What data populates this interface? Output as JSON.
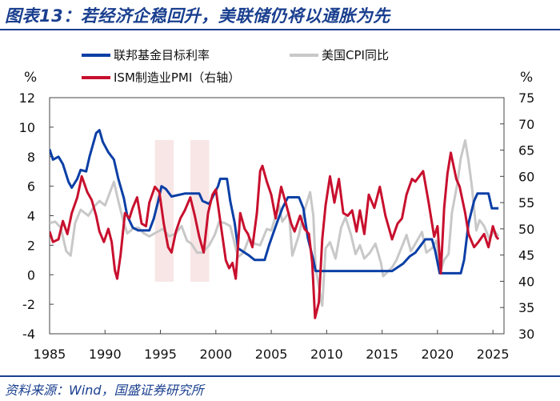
{
  "header": {
    "title": "图表13：若经济企稳回升，美联储仍将以通胀为先"
  },
  "footer": {
    "source": "资料来源：Wind，国盛证券研究所"
  },
  "colors": {
    "title": "#1a3f8f",
    "fed": "#0b3fa6",
    "cpi": "#c8c8c8",
    "pmi": "#c8102e",
    "shade": "#f6dede"
  },
  "chart_data": {
    "type": "line",
    "title": "",
    "xlabel": "",
    "left_unit": "%",
    "right_unit": "%",
    "x_range": [
      1985,
      2026
    ],
    "x_ticks": [
      1985,
      1990,
      1995,
      2000,
      2005,
      2010,
      2015,
      2020,
      2025
    ],
    "y_left": {
      "range": [
        -4,
        12
      ],
      "ticks": [
        -4,
        -2,
        0,
        2,
        4,
        6,
        8,
        10,
        12
      ]
    },
    "y_right": {
      "range": [
        30,
        75
      ],
      "ticks": [
        30,
        35,
        40,
        45,
        50,
        55,
        60,
        65,
        70,
        75
      ]
    },
    "shaded_periods": [
      [
        1994.5,
        1996.2
      ],
      [
        1997.7,
        1999.4
      ]
    ],
    "series": [
      {
        "name": "联邦基金目标利率",
        "axis": "left",
        "points": [
          [
            1985,
            8.5
          ],
          [
            1985.3,
            7.8
          ],
          [
            1985.8,
            8.0
          ],
          [
            1986.2,
            7.5
          ],
          [
            1986.7,
            6.3
          ],
          [
            1987,
            5.9
          ],
          [
            1987.5,
            6.5
          ],
          [
            1987.8,
            7.1
          ],
          [
            1988.3,
            7.0
          ],
          [
            1988.6,
            8.0
          ],
          [
            1989.2,
            9.6
          ],
          [
            1989.5,
            9.8
          ],
          [
            1989.8,
            9.0
          ],
          [
            1990.3,
            8.3
          ],
          [
            1990.8,
            7.8
          ],
          [
            1991.2,
            6.5
          ],
          [
            1991.7,
            5.2
          ],
          [
            1992,
            4.0
          ],
          [
            1992.5,
            3.2
          ],
          [
            1993,
            3.0
          ],
          [
            1994,
            3.0
          ],
          [
            1994.4,
            3.8
          ],
          [
            1994.8,
            5.0
          ],
          [
            1995.1,
            6.0
          ],
          [
            1995.5,
            5.8
          ],
          [
            1996,
            5.3
          ],
          [
            1997.2,
            5.5
          ],
          [
            1998.5,
            5.5
          ],
          [
            1998.8,
            5.0
          ],
          [
            1999.4,
            4.8
          ],
          [
            1999.8,
            5.4
          ],
          [
            2000.2,
            6.0
          ],
          [
            2000.4,
            6.5
          ],
          [
            2001,
            6.5
          ],
          [
            2001.3,
            5.0
          ],
          [
            2001.7,
            3.5
          ],
          [
            2002,
            1.8
          ],
          [
            2003,
            1.3
          ],
          [
            2003.5,
            1.0
          ],
          [
            2004.4,
            1.0
          ],
          [
            2004.8,
            2.0
          ],
          [
            2005.5,
            3.5
          ],
          [
            2006,
            4.5
          ],
          [
            2006.5,
            5.25
          ],
          [
            2007.5,
            5.25
          ],
          [
            2007.9,
            4.5
          ],
          [
            2008.3,
            2.5
          ],
          [
            2008.8,
            1.0
          ],
          [
            2009,
            0.25
          ],
          [
            2015.9,
            0.25
          ],
          [
            2016.9,
            0.75
          ],
          [
            2017.5,
            1.25
          ],
          [
            2018,
            1.5
          ],
          [
            2018.9,
            2.4
          ],
          [
            2019.5,
            2.4
          ],
          [
            2019.8,
            1.6
          ],
          [
            2020.2,
            0.1
          ],
          [
            2022.1,
            0.1
          ],
          [
            2022.4,
            1.0
          ],
          [
            2022.8,
            3.5
          ],
          [
            2023.3,
            5.0
          ],
          [
            2023.6,
            5.5
          ],
          [
            2024.6,
            5.5
          ],
          [
            2024.9,
            4.5
          ],
          [
            2025.5,
            4.5
          ]
        ]
      },
      {
        "name": "美国CPI同比",
        "axis": "left",
        "points": [
          [
            1985,
            3.5
          ],
          [
            1985.5,
            3.6
          ],
          [
            1986,
            3.2
          ],
          [
            1986.5,
            1.6
          ],
          [
            1986.9,
            1.3
          ],
          [
            1987.3,
            3.5
          ],
          [
            1987.8,
            4.4
          ],
          [
            1988.5,
            4.0
          ],
          [
            1989,
            4.6
          ],
          [
            1989.5,
            5.0
          ],
          [
            1990,
            4.7
          ],
          [
            1990.8,
            6.3
          ],
          [
            1991.2,
            5.0
          ],
          [
            1991.6,
            3.8
          ],
          [
            1992,
            2.8
          ],
          [
            1992.5,
            3.1
          ],
          [
            1993,
            3.2
          ],
          [
            1993.5,
            2.8
          ],
          [
            1994,
            2.6
          ],
          [
            1994.7,
            2.9
          ],
          [
            1995.2,
            3.1
          ],
          [
            1995.8,
            2.6
          ],
          [
            1996.4,
            2.8
          ],
          [
            1996.9,
            3.3
          ],
          [
            1997.4,
            2.3
          ],
          [
            1997.8,
            2.1
          ],
          [
            1998.3,
            1.5
          ],
          [
            1998.8,
            1.5
          ],
          [
            1999.4,
            2.0
          ],
          [
            1999.9,
            2.7
          ],
          [
            2000.3,
            3.6
          ],
          [
            2000.8,
            3.5
          ],
          [
            2001.3,
            3.3
          ],
          [
            2001.8,
            1.8
          ],
          [
            2002,
            1.2
          ],
          [
            2002.5,
            1.5
          ],
          [
            2003,
            2.5
          ],
          [
            2003.5,
            2.1
          ],
          [
            2004,
            2.0
          ],
          [
            2004.6,
            3.1
          ],
          [
            2005,
            3.0
          ],
          [
            2005.7,
            4.7
          ],
          [
            2006,
            3.6
          ],
          [
            2006.6,
            4.2
          ],
          [
            2006.9,
            1.3
          ],
          [
            2007.5,
            2.7
          ],
          [
            2007.9,
            4.1
          ],
          [
            2008.5,
            5.6
          ],
          [
            2008.8,
            4.0
          ],
          [
            2009,
            0.5
          ],
          [
            2009.4,
            -1.3
          ],
          [
            2009.6,
            -2.1
          ],
          [
            2009.9,
            1.8
          ],
          [
            2010.3,
            2.2
          ],
          [
            2010.8,
            1.1
          ],
          [
            2011.3,
            3.2
          ],
          [
            2011.7,
            3.9
          ],
          [
            2012.2,
            2.7
          ],
          [
            2012.6,
            1.4
          ],
          [
            2013,
            2.0
          ],
          [
            2013.4,
            1.1
          ],
          [
            2013.9,
            1.5
          ],
          [
            2014.4,
            2.1
          ],
          [
            2014.9,
            0.8
          ],
          [
            2015.1,
            -0.1
          ],
          [
            2015.5,
            0.2
          ],
          [
            2015.9,
            0.5
          ],
          [
            2016.3,
            1.0
          ],
          [
            2016.9,
            2.1
          ],
          [
            2017.2,
            2.7
          ],
          [
            2017.6,
            1.6
          ],
          [
            2018,
            2.1
          ],
          [
            2018.6,
            2.9
          ],
          [
            2019,
            1.5
          ],
          [
            2019.5,
            1.8
          ],
          [
            2019.9,
            2.3
          ],
          [
            2020.3,
            0.3
          ],
          [
            2020.6,
            1.0
          ],
          [
            2021,
            1.4
          ],
          [
            2021.3,
            4.2
          ],
          [
            2021.8,
            6.2
          ],
          [
            2022.1,
            7.9
          ],
          [
            2022.5,
            9.1
          ],
          [
            2022.8,
            7.7
          ],
          [
            2023.1,
            6.0
          ],
          [
            2023.5,
            3.0
          ],
          [
            2023.8,
            3.7
          ],
          [
            2024.2,
            3.3
          ],
          [
            2024.7,
            2.4
          ],
          [
            2025.1,
            3.0
          ],
          [
            2025.5,
            2.6
          ]
        ]
      },
      {
        "name": "ISM制造业PMI（右轴）",
        "axis": "right",
        "points": [
          [
            1985,
            49.5
          ],
          [
            1985.3,
            47.5
          ],
          [
            1985.8,
            48.0
          ],
          [
            1986.2,
            51.5
          ],
          [
            1986.6,
            49.0
          ],
          [
            1987,
            53.0
          ],
          [
            1987.5,
            56.0
          ],
          [
            1987.9,
            60.0
          ],
          [
            1988.4,
            57.0
          ],
          [
            1988.8,
            55.5
          ],
          [
            1989.2,
            52.5
          ],
          [
            1989.5,
            49.5
          ],
          [
            1989.9,
            47.5
          ],
          [
            1990.3,
            50.0
          ],
          [
            1990.6,
            47.5
          ],
          [
            1990.9,
            42.0
          ],
          [
            1991.1,
            40.5
          ],
          [
            1991.4,
            45.0
          ],
          [
            1991.8,
            53.0
          ],
          [
            1992.2,
            52.0
          ],
          [
            1992.5,
            54.0
          ],
          [
            1992.9,
            56.0
          ],
          [
            1993.3,
            51.0
          ],
          [
            1993.7,
            50.5
          ],
          [
            1994,
            55.0
          ],
          [
            1994.5,
            58.0
          ],
          [
            1994.9,
            57.0
          ],
          [
            1995.3,
            51.0
          ],
          [
            1995.7,
            46.5
          ],
          [
            1996,
            45.5
          ],
          [
            1996.4,
            49.5
          ],
          [
            1996.8,
            52.0
          ],
          [
            1997.2,
            53.5
          ],
          [
            1997.7,
            56.0
          ],
          [
            1998.1,
            52.5
          ],
          [
            1998.5,
            48.5
          ],
          [
            1998.9,
            45.5
          ],
          [
            1999.3,
            53.0
          ],
          [
            1999.7,
            56.5
          ],
          [
            2000,
            57.5
          ],
          [
            2000.5,
            50.0
          ],
          [
            2000.9,
            44.0
          ],
          [
            2001.2,
            42.5
          ],
          [
            2001.5,
            43.5
          ],
          [
            2001.8,
            40.5
          ],
          [
            2002.2,
            53.0
          ],
          [
            2002.6,
            50.0
          ],
          [
            2002.9,
            49.0
          ],
          [
            2003.3,
            46.5
          ],
          [
            2003.7,
            53.0
          ],
          [
            2004,
            61.0
          ],
          [
            2004.2,
            62.0
          ],
          [
            2004.6,
            59.0
          ],
          [
            2005,
            56.5
          ],
          [
            2005.4,
            52.0
          ],
          [
            2005.9,
            58.0
          ],
          [
            2006.3,
            55.0
          ],
          [
            2006.8,
            51.0
          ],
          [
            2007.1,
            49.5
          ],
          [
            2007.6,
            52.5
          ],
          [
            2008,
            50.0
          ],
          [
            2008.4,
            49.0
          ],
          [
            2008.7,
            43.5
          ],
          [
            2008.95,
            33.0
          ],
          [
            2009.3,
            36.0
          ],
          [
            2009.6,
            48.0
          ],
          [
            2009.9,
            54.5
          ],
          [
            2010.3,
            60.0
          ],
          [
            2010.7,
            55.0
          ],
          [
            2011.1,
            59.5
          ],
          [
            2011.5,
            53.0
          ],
          [
            2011.9,
            52.5
          ],
          [
            2012.3,
            53.5
          ],
          [
            2012.7,
            49.5
          ],
          [
            2013,
            53.5
          ],
          [
            2013.4,
            49.0
          ],
          [
            2013.8,
            56.5
          ],
          [
            2014.3,
            54.0
          ],
          [
            2014.8,
            58.0
          ],
          [
            2015.3,
            52.5
          ],
          [
            2015.9,
            48.0
          ],
          [
            2016.4,
            51.0
          ],
          [
            2016.8,
            52.0
          ],
          [
            2017.2,
            56.5
          ],
          [
            2017.7,
            59.5
          ],
          [
            2018,
            59.0
          ],
          [
            2018.7,
            61.0
          ],
          [
            2019.2,
            55.0
          ],
          [
            2019.7,
            48.5
          ],
          [
            2020,
            50.5
          ],
          [
            2020.3,
            41.5
          ],
          [
            2020.6,
            54.0
          ],
          [
            2020.9,
            60.5
          ],
          [
            2021.2,
            64.5
          ],
          [
            2021.7,
            59.5
          ],
          [
            2022,
            58.0
          ],
          [
            2022.5,
            53.0
          ],
          [
            2022.8,
            49.0
          ],
          [
            2023.3,
            46.5
          ],
          [
            2023.7,
            47.5
          ],
          [
            2024.2,
            49.0
          ],
          [
            2024.6,
            46.5
          ],
          [
            2025,
            50.5
          ],
          [
            2025.3,
            48.5
          ],
          [
            2025.5,
            48.0
          ]
        ]
      }
    ]
  }
}
